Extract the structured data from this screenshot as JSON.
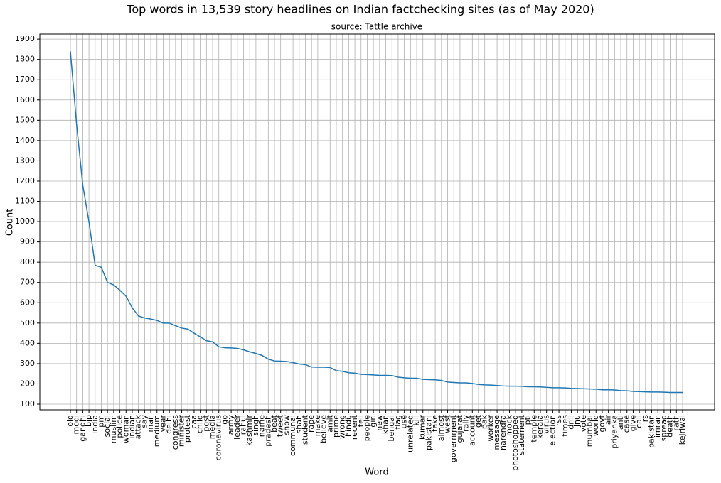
{
  "chart_data": {
    "type": "line",
    "title": "Top words in 13,539 story headlines on Indian factchecking sites (as of May 2020)",
    "subtitle": "source: Tattle archive",
    "x_label": "Word",
    "y_label": "Count",
    "categories": [
      "old",
      "modi",
      "gandhi",
      "bjp",
      "india",
      "pm",
      "social",
      "muslim",
      "police",
      "woman",
      "indian",
      "attack",
      "say",
      "man",
      "medium",
      "year",
      "delhi",
      "congress",
      "minister",
      "protest",
      "caa",
      "child",
      "post",
      "media",
      "coronavirus",
      "go",
      "army",
      "leader",
      "rahul",
      "kashmir",
      "singh",
      "name",
      "pradesh",
      "beat",
      "tweet",
      "show",
      "communal",
      "shah",
      "student",
      "rape",
      "make",
      "believe",
      "amit",
      "prime",
      "wrong",
      "hindu",
      "recent",
      "tell",
      "people",
      "girl",
      "new",
      "khan",
      "bengal",
      "flag",
      "use",
      "unrelated",
      "kill",
      "kumar",
      "pakistani",
      "take",
      "almost",
      "west",
      "government",
      "gujarat",
      "rally",
      "account",
      "get",
      "pak",
      "worker",
      "message",
      "narendra",
      "mock",
      "photoshopped",
      "statement",
      "pti",
      "temple",
      "kerala",
      "virus",
      "election",
      "rss",
      "times",
      "drill",
      "jnu",
      "vote",
      "mumbai",
      "world",
      "govt",
      "air",
      "priyanka",
      "anti",
      "case",
      "give",
      "call",
      "rs",
      "pakistan",
      "imran",
      "spread",
      "death",
      "rath",
      "kejriwal"
    ],
    "series": [
      {
        "name": "Count",
        "color": "#1f77b4",
        "values": [
          1840,
          1480,
          1180,
          1000,
          785,
          775,
          700,
          688,
          662,
          632,
          575,
          535,
          525,
          520,
          513,
          500,
          500,
          487,
          475,
          470,
          450,
          432,
          413,
          407,
          383,
          378,
          377,
          375,
          368,
          358,
          350,
          340,
          322,
          313,
          312,
          310,
          305,
          298,
          295,
          283,
          282,
          282,
          281,
          265,
          262,
          255,
          253,
          247,
          246,
          244,
          242,
          242,
          241,
          233,
          230,
          228,
          228,
          222,
          221,
          220,
          217,
          209,
          207,
          205,
          205,
          202,
          197,
          195,
          194,
          192,
          190,
          189,
          189,
          188,
          186,
          186,
          185,
          183,
          181,
          181,
          180,
          178,
          177,
          176,
          175,
          174,
          171,
          171,
          170,
          167,
          166,
          163,
          162,
          161,
          160,
          160,
          159,
          158,
          158,
          158
        ]
      }
    ],
    "ylim": [
      72,
      1925
    ],
    "yticks": [
      100,
      200,
      300,
      400,
      500,
      600,
      700,
      800,
      900,
      1000,
      1100,
      1200,
      1300,
      1400,
      1500,
      1600,
      1700,
      1800,
      1900
    ],
    "grid": true
  }
}
